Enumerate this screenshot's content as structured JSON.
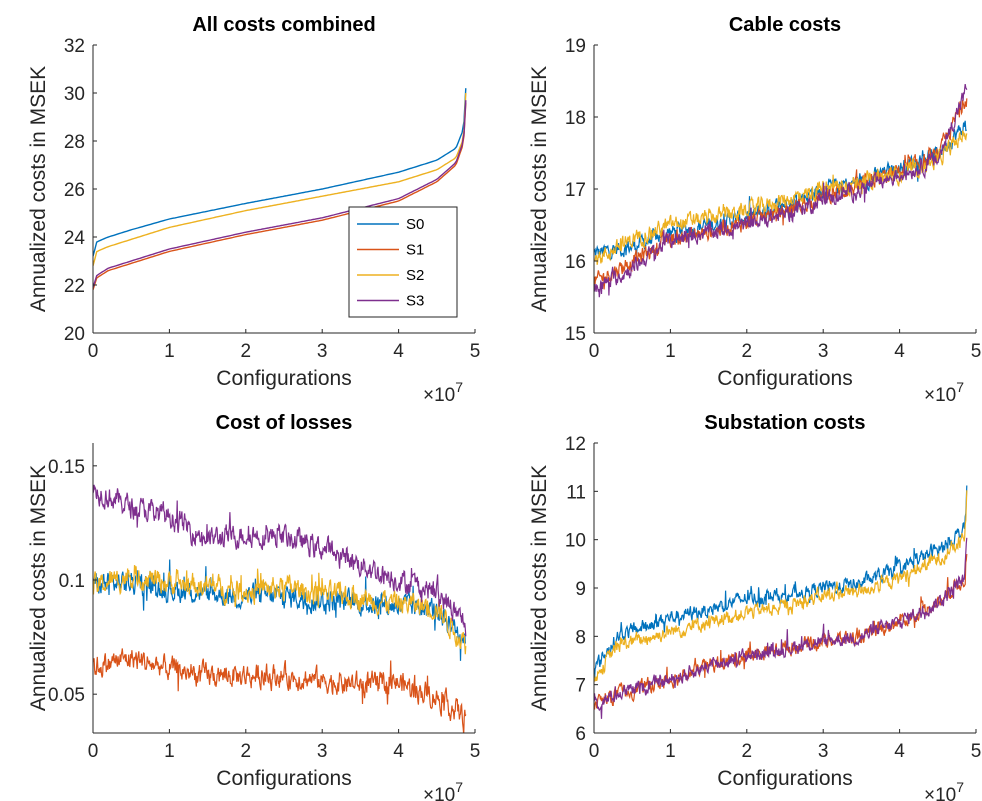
{
  "chart_data": [
    {
      "type": "line",
      "title": "All costs combined",
      "xlabel": "Configurations",
      "ylabel": "Annualized costs in MSEK",
      "x_multiplier_label": "×10",
      "x_multiplier_exp": "7",
      "xlim": [
        0,
        5
      ],
      "ylim": [
        20,
        32
      ],
      "xticks": [
        "0",
        "1",
        "2",
        "3",
        "4",
        "5"
      ],
      "yticks": [
        "20",
        "22",
        "24",
        "26",
        "28",
        "30",
        "32"
      ],
      "legend": {
        "position": "inside-bottom-right",
        "entries": [
          "S0",
          "S1",
          "S2",
          "S3"
        ]
      },
      "noise": 0,
      "series": [
        {
          "name": "S0",
          "color": "#0072BD",
          "x": [
            0,
            0.05,
            0.2,
            0.5,
            1,
            2,
            3,
            4,
            4.5,
            4.75,
            4.85,
            4.88
          ],
          "values": [
            23.2,
            23.8,
            24.0,
            24.3,
            24.75,
            25.4,
            26.0,
            26.7,
            27.2,
            27.7,
            28.5,
            30.2
          ]
        },
        {
          "name": "S1",
          "color": "#D95319",
          "x": [
            0,
            0.05,
            0.2,
            0.5,
            1,
            2,
            3,
            4,
            4.5,
            4.75,
            4.85,
            4.88
          ],
          "values": [
            21.8,
            22.3,
            22.6,
            22.9,
            23.4,
            24.1,
            24.7,
            25.5,
            26.3,
            27.0,
            27.9,
            29.6
          ]
        },
        {
          "name": "S2",
          "color": "#EDB120",
          "x": [
            0,
            0.05,
            0.2,
            0.5,
            1,
            2,
            3,
            4,
            4.5,
            4.75,
            4.85,
            4.88
          ],
          "values": [
            22.8,
            23.4,
            23.6,
            23.9,
            24.4,
            25.1,
            25.7,
            26.3,
            26.8,
            27.3,
            28.1,
            30.0
          ]
        },
        {
          "name": "S3",
          "color": "#7E2F8E",
          "x": [
            0,
            0.05,
            0.2,
            0.5,
            1,
            2,
            3,
            4,
            4.5,
            4.75,
            4.85,
            4.88
          ],
          "values": [
            21.9,
            22.4,
            22.7,
            23.0,
            23.5,
            24.2,
            24.8,
            25.6,
            26.4,
            27.1,
            28.0,
            29.7
          ]
        }
      ]
    },
    {
      "type": "line",
      "title": "Cable costs",
      "xlabel": "Configurations",
      "ylabel": "Annualized costs in MSEK",
      "x_multiplier_label": "×10",
      "x_multiplier_exp": "7",
      "xlim": [
        0,
        5
      ],
      "ylim": [
        15,
        19
      ],
      "xticks": [
        "0",
        "1",
        "2",
        "3",
        "4",
        "5"
      ],
      "yticks": [
        "15",
        "16",
        "17",
        "18",
        "19"
      ],
      "noise": 0.09,
      "series": [
        {
          "name": "S0",
          "color": "#0072BD",
          "x": [
            0,
            0.5,
            1,
            1.5,
            2,
            2.5,
            3,
            3.5,
            4,
            4.5,
            4.88
          ],
          "values": [
            16.1,
            16.2,
            16.4,
            16.5,
            16.6,
            16.8,
            17.0,
            17.1,
            17.3,
            17.5,
            17.9
          ]
        },
        {
          "name": "S1",
          "color": "#D95319",
          "x": [
            0,
            0.5,
            1,
            1.5,
            2,
            2.5,
            3,
            3.5,
            4,
            4.5,
            4.88
          ],
          "values": [
            15.7,
            16.0,
            16.3,
            16.4,
            16.55,
            16.7,
            16.9,
            17.05,
            17.25,
            17.45,
            18.3
          ]
        },
        {
          "name": "S2",
          "color": "#EDB120",
          "x": [
            0,
            0.5,
            1,
            1.5,
            2,
            2.5,
            3,
            3.5,
            4,
            4.5,
            4.88
          ],
          "values": [
            16.0,
            16.3,
            16.5,
            16.6,
            16.7,
            16.85,
            17.0,
            17.1,
            17.2,
            17.4,
            17.8
          ]
        },
        {
          "name": "S3",
          "color": "#7E2F8E",
          "x": [
            0,
            0.5,
            1,
            1.5,
            2,
            2.5,
            3,
            3.5,
            4,
            4.5,
            4.88
          ],
          "values": [
            15.6,
            15.9,
            16.3,
            16.4,
            16.5,
            16.65,
            16.85,
            17.0,
            17.2,
            17.4,
            18.4
          ]
        }
      ]
    },
    {
      "type": "line",
      "title": "Cost of losses",
      "xlabel": "Configurations",
      "ylabel": "Annualized costs in MSEK",
      "x_multiplier_label": "×10",
      "x_multiplier_exp": "7",
      "xlim": [
        0,
        5
      ],
      "ylim": [
        0.033,
        0.16
      ],
      "xticks": [
        "0",
        "1",
        "2",
        "3",
        "4",
        "5"
      ],
      "ytick_values": [
        0.05,
        0.1,
        0.15
      ],
      "yticks": [
        "0.05",
        "0.1",
        "0.15"
      ],
      "noise": 0.004,
      "series": [
        {
          "name": "S0",
          "color": "#0072BD",
          "x": [
            0,
            0.5,
            1,
            1.5,
            2,
            2.5,
            3,
            3.5,
            4,
            4.5,
            4.88
          ],
          "values": [
            0.098,
            0.099,
            0.096,
            0.094,
            0.093,
            0.093,
            0.091,
            0.09,
            0.089,
            0.087,
            0.075
          ]
        },
        {
          "name": "S1",
          "color": "#D95319",
          "x": [
            0,
            0.5,
            1,
            1.5,
            2,
            2.5,
            3,
            3.5,
            4,
            4.5,
            4.88
          ],
          "values": [
            0.062,
            0.066,
            0.061,
            0.058,
            0.058,
            0.058,
            0.056,
            0.054,
            0.055,
            0.049,
            0.04
          ]
        },
        {
          "name": "S2",
          "color": "#EDB120",
          "x": [
            0,
            0.5,
            1,
            1.5,
            2,
            2.5,
            3,
            3.5,
            4,
            4.5,
            4.88
          ],
          "values": [
            0.097,
            0.102,
            0.099,
            0.097,
            0.095,
            0.097,
            0.094,
            0.092,
            0.09,
            0.088,
            0.072
          ]
        },
        {
          "name": "S3",
          "color": "#7E2F8E",
          "x": [
            0,
            0.5,
            1,
            1.5,
            2,
            2.5,
            3,
            3.5,
            4,
            4.5,
            4.88
          ],
          "values": [
            0.14,
            0.132,
            0.128,
            0.118,
            0.12,
            0.119,
            0.114,
            0.107,
            0.1,
            0.095,
            0.08
          ]
        }
      ]
    },
    {
      "type": "line",
      "title": "Substation costs",
      "xlabel": "Configurations",
      "ylabel": "Annualized costs in MSEK",
      "x_multiplier_label": "×10",
      "x_multiplier_exp": "7",
      "xlim": [
        0,
        5
      ],
      "ylim": [
        6,
        12
      ],
      "xticks": [
        "0",
        "1",
        "2",
        "3",
        "4",
        "5"
      ],
      "yticks": [
        "6",
        "7",
        "8",
        "9",
        "10",
        "11",
        "12"
      ],
      "noise": 0.12,
      "series": [
        {
          "name": "S0",
          "color": "#0072BD",
          "x": [
            0,
            0.3,
            1,
            1.5,
            2,
            2.5,
            3,
            3.5,
            4,
            4.5,
            4.85,
            4.88
          ],
          "values": [
            7.3,
            8.0,
            8.4,
            8.55,
            8.8,
            8.85,
            9.0,
            9.1,
            9.4,
            9.8,
            10.2,
            11.0
          ]
        },
        {
          "name": "S1",
          "color": "#D95319",
          "x": [
            0,
            0.3,
            1,
            1.5,
            2,
            2.5,
            3,
            3.5,
            4,
            4.5,
            4.85,
            4.88
          ],
          "values": [
            6.6,
            6.8,
            7.1,
            7.4,
            7.6,
            7.75,
            7.9,
            8.0,
            8.3,
            8.7,
            9.2,
            9.8
          ]
        },
        {
          "name": "S2",
          "color": "#EDB120",
          "x": [
            0,
            0.3,
            1,
            1.5,
            2,
            2.5,
            3,
            3.5,
            4,
            4.5,
            4.85,
            4.88
          ],
          "values": [
            7.1,
            7.8,
            8.1,
            8.3,
            8.5,
            8.6,
            8.85,
            8.95,
            9.2,
            9.6,
            10.0,
            10.9
          ]
        },
        {
          "name": "S3",
          "color": "#7E2F8E",
          "x": [
            0,
            0.3,
            1,
            1.5,
            2,
            2.5,
            3,
            3.5,
            4,
            4.5,
            4.85,
            4.88
          ],
          "values": [
            6.6,
            6.8,
            7.1,
            7.4,
            7.6,
            7.75,
            7.9,
            8.0,
            8.3,
            8.7,
            9.2,
            9.9
          ]
        }
      ]
    }
  ]
}
